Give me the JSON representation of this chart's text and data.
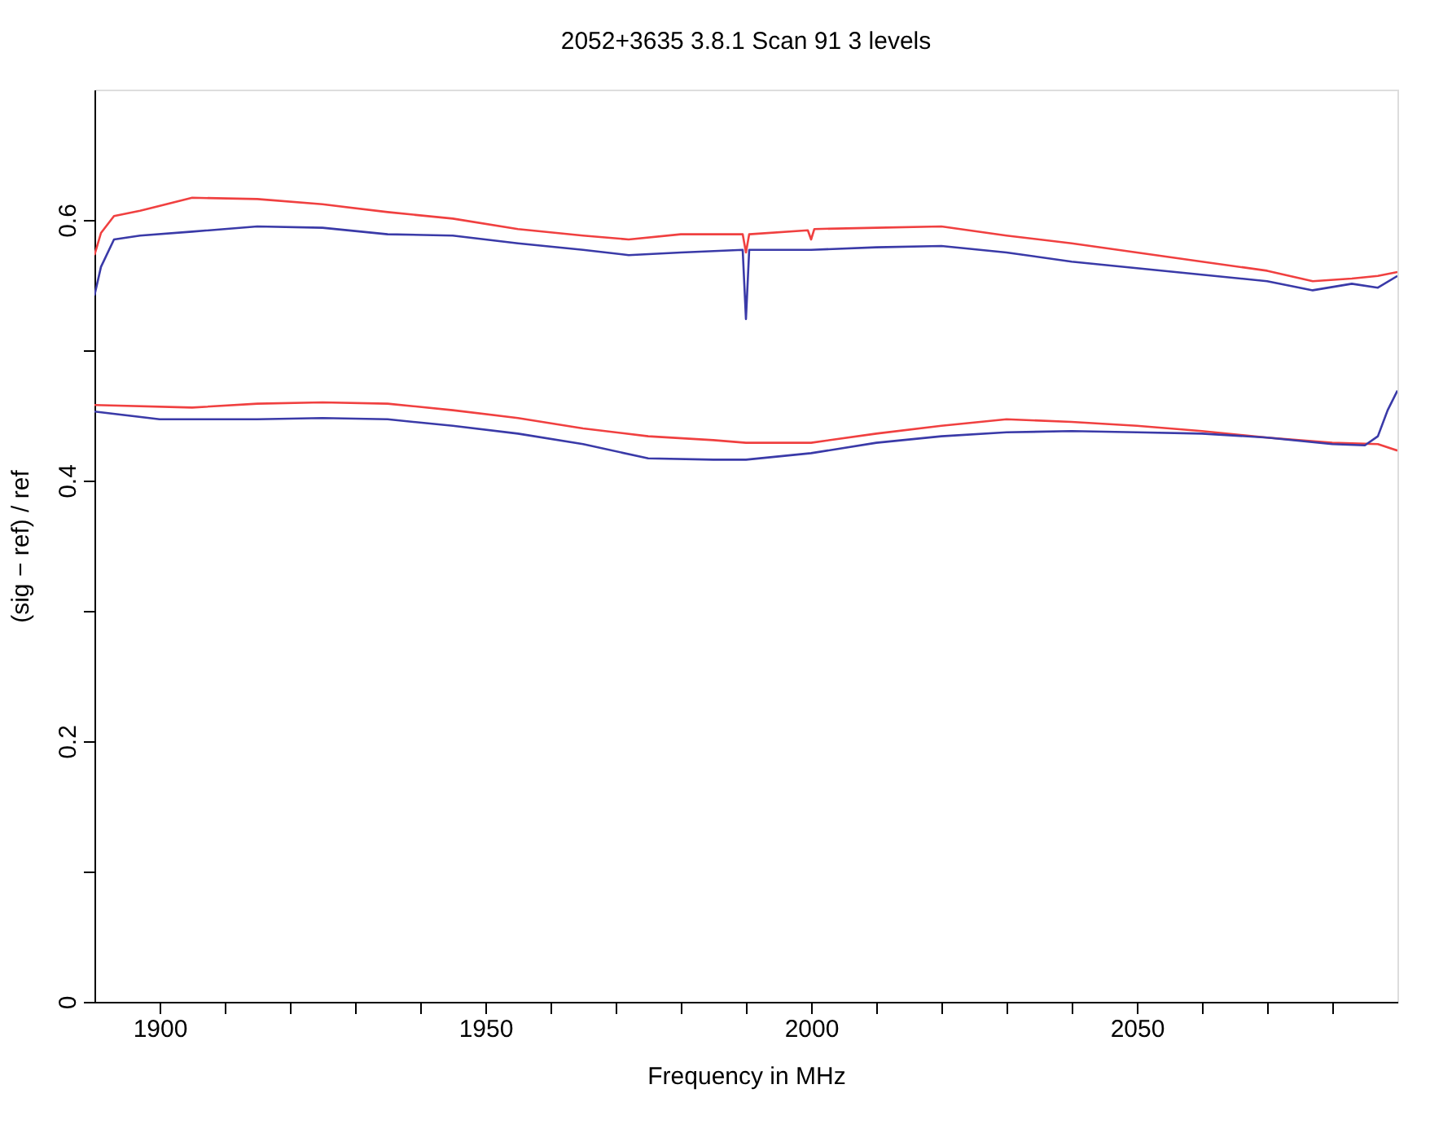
{
  "chart_data": {
    "type": "line",
    "title": "2052+3635 3.8.1 Scan 91 3 levels",
    "xlabel": "Frequency in MHz",
    "ylabel": "(sig − ref) / ref",
    "xlim": [
      1890,
      2090
    ],
    "ylim": [
      0,
      0.7
    ],
    "xticks": [
      1900,
      {
        "value": 1910,
        "label": null
      },
      {
        "value": 1920,
        "label": null
      },
      {
        "value": 1930,
        "label": null
      },
      {
        "value": 1940,
        "label": null
      },
      1950,
      {
        "value": 1960,
        "label": null
      },
      {
        "value": 1970,
        "label": null
      },
      {
        "value": 1980,
        "label": null
      },
      {
        "value": 1990,
        "label": null
      },
      2000,
      {
        "value": 2010,
        "label": null
      },
      {
        "value": 2020,
        "label": null
      },
      {
        "value": 2030,
        "label": null
      },
      {
        "value": 2040,
        "label": null
      },
      2050,
      {
        "value": 2060,
        "label": null
      },
      {
        "value": 2070,
        "label": null
      },
      {
        "value": 2080,
        "label": null
      }
    ],
    "yticks": [
      0,
      {
        "value": 0.1,
        "label": null
      },
      0.2,
      {
        "value": 0.3,
        "label": null
      },
      0.4,
      {
        "value": 0.5,
        "label": null
      },
      0.6
    ],
    "grid": false,
    "marker": "none",
    "line_style": "solid",
    "series": [
      {
        "color": "#f04040",
        "x": [
          1890,
          1891,
          1893,
          1897,
          1905,
          1915,
          1925,
          1935,
          1945,
          1955,
          1965,
          1972,
          1980,
          1989.5,
          1990,
          1990.5,
          1999.5,
          2000,
          2000.5,
          2010,
          2020,
          2030,
          2040,
          2050,
          2060,
          2070,
          2077,
          2083,
          2087,
          2090
        ],
        "values": [
          0.573,
          0.59,
          0.603,
          0.607,
          0.617,
          0.616,
          0.612,
          0.606,
          0.601,
          0.593,
          0.588,
          0.585,
          0.589,
          0.589,
          0.575,
          0.589,
          0.592,
          0.585,
          0.593,
          0.594,
          0.595,
          0.588,
          0.582,
          0.575,
          0.568,
          0.561,
          0.553,
          0.555,
          0.557,
          0.56
        ]
      },
      {
        "color": "#3a3aa8",
        "x": [
          1890,
          1891,
          1893,
          1897,
          1905,
          1915,
          1925,
          1935,
          1945,
          1955,
          1965,
          1972,
          1980,
          1989.5,
          1990,
          1990.5,
          2000,
          2010,
          2020,
          2030,
          2040,
          2050,
          2060,
          2070,
          2077,
          2083,
          2087,
          2090
        ],
        "values": [
          0.542,
          0.564,
          0.585,
          0.588,
          0.591,
          0.595,
          0.594,
          0.589,
          0.588,
          0.582,
          0.577,
          0.573,
          0.575,
          0.577,
          0.524,
          0.577,
          0.577,
          0.579,
          0.58,
          0.575,
          0.568,
          0.563,
          0.558,
          0.553,
          0.546,
          0.551,
          0.548,
          0.557
        ]
      },
      {
        "color": "#f04040",
        "x": [
          1890,
          1905,
          1915,
          1925,
          1935,
          1945,
          1955,
          1965,
          1975,
          1985,
          1990,
          2000,
          2010,
          2020,
          2030,
          2040,
          2050,
          2060,
          2070,
          2080,
          2087,
          2090
        ],
        "values": [
          0.458,
          0.456,
          0.459,
          0.46,
          0.459,
          0.454,
          0.448,
          0.44,
          0.434,
          0.431,
          0.429,
          0.429,
          0.436,
          0.442,
          0.447,
          0.445,
          0.442,
          0.438,
          0.433,
          0.429,
          0.428,
          0.423
        ]
      },
      {
        "color": "#3a3aa8",
        "x": [
          1890,
          1900,
          1915,
          1925,
          1935,
          1945,
          1955,
          1965,
          1975,
          1985,
          1990,
          2000,
          2010,
          2020,
          2030,
          2040,
          2050,
          2060,
          2070,
          2080,
          2085,
          2087,
          2088.5,
          2090
        ],
        "values": [
          0.453,
          0.447,
          0.447,
          0.448,
          0.447,
          0.442,
          0.436,
          0.428,
          0.417,
          0.416,
          0.416,
          0.421,
          0.429,
          0.434,
          0.437,
          0.438,
          0.437,
          0.436,
          0.433,
          0.428,
          0.427,
          0.434,
          0.454,
          0.469
        ]
      }
    ]
  }
}
